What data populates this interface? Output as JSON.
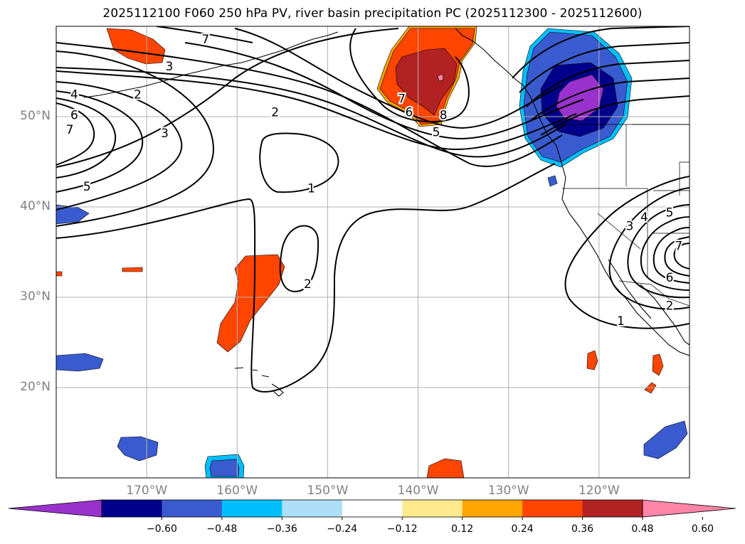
{
  "title": "2025112100 F060 250 hPa PV, river basin precipitation PC (2025112300 - 2025112600)",
  "lat_labels": [
    {
      "text": "50°N",
      "lat": 50
    },
    {
      "text": "40°N",
      "lat": 40
    },
    {
      "text": "30°N",
      "lat": 30
    },
    {
      "text": "20°N",
      "lat": 20
    }
  ],
  "lon_labels": [
    {
      "text": "170°W",
      "lon": -170
    },
    {
      "text": "160°W",
      "lon": -160
    },
    {
      "text": "150°W",
      "lon": -150
    },
    {
      "text": "140°W",
      "lon": -140
    },
    {
      "text": "130°W",
      "lon": -130
    },
    {
      "text": "120°W",
      "lon": -120
    }
  ],
  "map_extent": {
    "lon": [
      -180,
      -110
    ],
    "lat": [
      10,
      60
    ]
  },
  "colorbar": {
    "extend": "both",
    "colors": [
      "#9932CC",
      "#00008B",
      "#3A5BCF",
      "#00BFFF",
      "#ADE0F7",
      "#FFFFFF",
      "#FFE98E",
      "#FFA500",
      "#FF4500",
      "#B22222",
      "#FF85A8"
    ],
    "tick_labels": [
      "−0.60",
      "−0.48",
      "−0.36",
      "−0.24",
      "−0.12",
      "0.12",
      "0.24",
      "0.36",
      "0.48",
      "0.60"
    ]
  },
  "pv_contour_labels": [
    {
      "text": "7",
      "lon": -163.5,
      "lat": 58.6
    },
    {
      "text": "3",
      "lon": -167.5,
      "lat": 55.6
    },
    {
      "text": "4",
      "lon": -178.0,
      "lat": 52.5
    },
    {
      "text": "2",
      "lon": -171.0,
      "lat": 52.5
    },
    {
      "text": "6",
      "lon": -178.0,
      "lat": 50.2
    },
    {
      "text": "7",
      "lon": -178.5,
      "lat": 48.6
    },
    {
      "text": "3",
      "lon": -168.0,
      "lat": 48.2
    },
    {
      "text": "2",
      "lon": -155.8,
      "lat": 50.5
    },
    {
      "text": "5",
      "lon": -176.6,
      "lat": 42.3
    },
    {
      "text": "1",
      "lon": -151.8,
      "lat": 42.1
    },
    {
      "text": "7",
      "lon": -141.8,
      "lat": 52.0
    },
    {
      "text": "6",
      "lon": -141.0,
      "lat": 50.5
    },
    {
      "text": "8",
      "lon": -137.2,
      "lat": 50.2
    },
    {
      "text": "5",
      "lon": -138.0,
      "lat": 48.3
    },
    {
      "text": "2",
      "lon": -152.2,
      "lat": 31.5
    },
    {
      "text": "3",
      "lon": -116.6,
      "lat": 37.9
    },
    {
      "text": "4",
      "lon": -115.0,
      "lat": 38.9
    },
    {
      "text": "5",
      "lon": -112.2,
      "lat": 39.4
    },
    {
      "text": "7",
      "lon": -111.2,
      "lat": 35.7
    },
    {
      "text": "6",
      "lon": -112.2,
      "lat": 32.2
    },
    {
      "text": "2",
      "lon": -112.2,
      "lat": 29.1
    },
    {
      "text": "1",
      "lon": -117.6,
      "lat": 27.4
    }
  ]
}
